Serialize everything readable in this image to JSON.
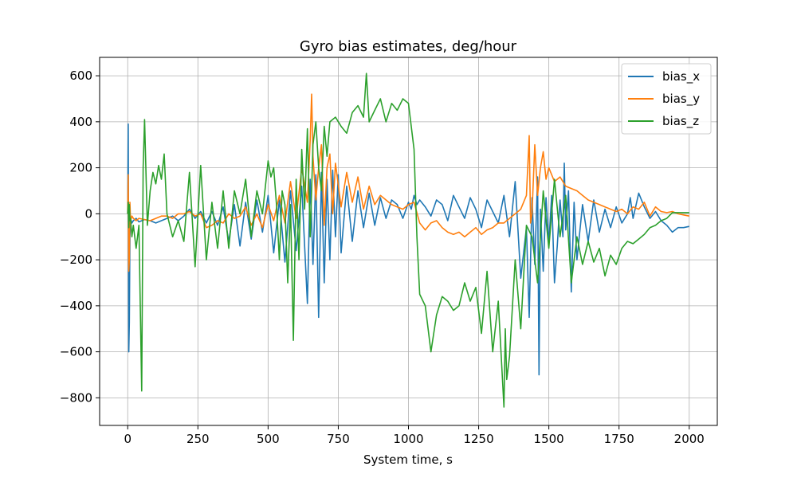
{
  "chart_data": {
    "type": "line",
    "title": "Gyro bias estimates, deg/hour",
    "xlabel": "System time, s",
    "ylabel": "",
    "xlim": [
      -100,
      2100
    ],
    "ylim": [
      -920,
      680
    ],
    "xticks": [
      0,
      250,
      500,
      750,
      1000,
      1250,
      1500,
      1750,
      2000
    ],
    "yticks": [
      -800,
      -600,
      -400,
      -200,
      0,
      200,
      400,
      600
    ],
    "grid": true,
    "legend_position": "top-right",
    "series": [
      {
        "name": "bias_x",
        "color": "#1f77b4",
        "x": [
          0,
          2,
          4,
          6,
          8,
          10,
          15,
          20,
          30,
          40,
          60,
          80,
          100,
          120,
          140,
          160,
          180,
          200,
          220,
          240,
          260,
          280,
          300,
          320,
          340,
          360,
          380,
          400,
          420,
          440,
          460,
          480,
          500,
          520,
          540,
          560,
          580,
          600,
          620,
          640,
          650,
          660,
          670,
          680,
          690,
          700,
          710,
          720,
          730,
          740,
          750,
          760,
          780,
          800,
          820,
          840,
          860,
          880,
          900,
          920,
          940,
          960,
          980,
          1000,
          1010,
          1020,
          1030,
          1040,
          1060,
          1080,
          1100,
          1120,
          1140,
          1160,
          1180,
          1200,
          1220,
          1240,
          1260,
          1280,
          1300,
          1320,
          1340,
          1360,
          1380,
          1400,
          1420,
          1430,
          1440,
          1450,
          1460,
          1465,
          1470,
          1480,
          1490,
          1500,
          1510,
          1520,
          1530,
          1540,
          1550,
          1555,
          1560,
          1570,
          1580,
          1590,
          1600,
          1620,
          1640,
          1660,
          1680,
          1700,
          1720,
          1740,
          1760,
          1780,
          1790,
          1800,
          1820,
          1840,
          1860,
          1880,
          1900,
          1920,
          1940,
          1960,
          1980,
          2000
        ],
        "y": [
          0,
          390,
          -600,
          -470,
          -100,
          -20,
          -40,
          -30,
          -20,
          -35,
          -25,
          -30,
          -40,
          -30,
          -20,
          -10,
          -30,
          -10,
          20,
          -20,
          10,
          -40,
          10,
          -50,
          30,
          -120,
          40,
          -140,
          50,
          -110,
          60,
          -80,
          80,
          -170,
          60,
          -210,
          100,
          -160,
          120,
          -390,
          150,
          -220,
          170,
          -450,
          180,
          -300,
          150,
          -200,
          190,
          -100,
          170,
          -170,
          120,
          -120,
          100,
          -60,
          90,
          -50,
          70,
          -20,
          60,
          40,
          -20,
          50,
          20,
          80,
          40,
          60,
          30,
          -10,
          60,
          40,
          -30,
          80,
          30,
          -20,
          70,
          20,
          -60,
          60,
          10,
          -40,
          80,
          -100,
          140,
          -280,
          -60,
          -450,
          70,
          -220,
          160,
          -700,
          20,
          -250,
          70,
          -130,
          80,
          -300,
          -140,
          60,
          -100,
          220,
          -70,
          100,
          -340,
          50,
          -200,
          40,
          -120,
          60,
          -80,
          20,
          -60,
          30,
          -40,
          0,
          70,
          -20,
          90,
          30,
          -20,
          10,
          -30,
          -50,
          -80,
          -60,
          -60,
          -55
        ]
      },
      {
        "name": "bias_y",
        "color": "#ff7f0e",
        "x": [
          0,
          2,
          4,
          6,
          8,
          10,
          15,
          20,
          30,
          40,
          60,
          80,
          100,
          120,
          140,
          160,
          180,
          200,
          220,
          240,
          260,
          280,
          300,
          320,
          340,
          360,
          380,
          400,
          420,
          440,
          460,
          480,
          500,
          520,
          540,
          560,
          580,
          600,
          620,
          640,
          650,
          655,
          660,
          670,
          680,
          690,
          700,
          710,
          720,
          730,
          740,
          760,
          780,
          800,
          820,
          840,
          860,
          880,
          900,
          920,
          940,
          960,
          980,
          1000,
          1020,
          1040,
          1060,
          1080,
          1100,
          1120,
          1140,
          1160,
          1180,
          1200,
          1220,
          1240,
          1260,
          1280,
          1300,
          1320,
          1340,
          1360,
          1380,
          1400,
          1420,
          1430,
          1435,
          1440,
          1450,
          1460,
          1470,
          1480,
          1490,
          1500,
          1520,
          1540,
          1560,
          1580,
          1600,
          1620,
          1640,
          1660,
          1680,
          1700,
          1720,
          1740,
          1760,
          1780,
          1800,
          1820,
          1840,
          1860,
          1880,
          1900,
          1920,
          1940,
          1960,
          1980,
          2000
        ],
        "y": [
          0,
          170,
          -250,
          -200,
          50,
          -30,
          -10,
          -20,
          -30,
          -20,
          -25,
          -30,
          -20,
          -10,
          -10,
          -20,
          0,
          0,
          10,
          -10,
          0,
          -60,
          -50,
          -30,
          -40,
          0,
          -20,
          -10,
          30,
          -50,
          0,
          -60,
          40,
          -30,
          80,
          -40,
          140,
          -20,
          200,
          50,
          320,
          520,
          250,
          60,
          200,
          300,
          -50,
          200,
          260,
          0,
          220,
          30,
          180,
          50,
          160,
          20,
          120,
          40,
          80,
          60,
          40,
          30,
          20,
          40,
          50,
          -40,
          -70,
          -40,
          -30,
          -60,
          -80,
          -90,
          -80,
          -100,
          -80,
          -60,
          -90,
          -70,
          -60,
          -40,
          -40,
          -20,
          0,
          20,
          80,
          340,
          -40,
          0,
          300,
          80,
          200,
          270,
          150,
          200,
          140,
          160,
          120,
          110,
          100,
          80,
          60,
          50,
          40,
          30,
          20,
          10,
          20,
          0,
          30,
          20,
          50,
          -10,
          30,
          10,
          5,
          10,
          0,
          -5,
          -10
        ]
      },
      {
        "name": "bias_z",
        "color": "#2ca02c",
        "x": [
          0,
          2,
          4,
          6,
          8,
          10,
          15,
          20,
          30,
          40,
          50,
          55,
          60,
          70,
          80,
          90,
          100,
          110,
          120,
          130,
          140,
          160,
          180,
          200,
          220,
          240,
          260,
          280,
          300,
          320,
          340,
          360,
          380,
          400,
          420,
          440,
          460,
          480,
          500,
          510,
          520,
          530,
          540,
          550,
          560,
          570,
          580,
          590,
          600,
          610,
          620,
          630,
          640,
          650,
          660,
          670,
          680,
          690,
          700,
          710,
          720,
          740,
          760,
          780,
          800,
          820,
          840,
          850,
          860,
          880,
          900,
          920,
          940,
          960,
          980,
          1000,
          1010,
          1020,
          1030,
          1040,
          1060,
          1080,
          1100,
          1120,
          1140,
          1160,
          1180,
          1200,
          1220,
          1240,
          1260,
          1280,
          1300,
          1320,
          1340,
          1345,
          1350,
          1360,
          1380,
          1400,
          1420,
          1440,
          1460,
          1480,
          1500,
          1520,
          1540,
          1560,
          1580,
          1600,
          1620,
          1640,
          1660,
          1680,
          1700,
          1720,
          1740,
          1760,
          1780,
          1800,
          1820,
          1840,
          1860,
          1880,
          1900,
          1920,
          1940,
          1960,
          1980,
          2000
        ],
        "y": [
          0,
          50,
          -60,
          40,
          -30,
          -20,
          -100,
          -50,
          -150,
          -50,
          -770,
          200,
          410,
          -50,
          100,
          180,
          130,
          210,
          150,
          260,
          0,
          -100,
          -30,
          -120,
          180,
          -230,
          210,
          -200,
          50,
          -150,
          100,
          -150,
          100,
          0,
          150,
          -100,
          100,
          0,
          230,
          160,
          200,
          40,
          -200,
          100,
          40,
          -300,
          40,
          -550,
          150,
          -200,
          280,
          20,
          370,
          -100,
          300,
          400,
          200,
          100,
          380,
          250,
          400,
          420,
          380,
          350,
          440,
          470,
          420,
          610,
          400,
          450,
          500,
          400,
          480,
          450,
          500,
          480,
          380,
          280,
          -100,
          -350,
          -400,
          -600,
          -440,
          -360,
          -380,
          -420,
          -400,
          -300,
          -380,
          -320,
          -520,
          -250,
          -600,
          -380,
          -840,
          -500,
          -720,
          -620,
          -200,
          -500,
          -50,
          -100,
          -300,
          100,
          -150,
          150,
          -100,
          80,
          -300,
          -100,
          -220,
          -120,
          -210,
          -150,
          -270,
          -180,
          -220,
          -150,
          -120,
          -130,
          -110,
          -90,
          -60,
          -50,
          -30,
          -20,
          5,
          5,
          5,
          5
        ]
      }
    ]
  }
}
